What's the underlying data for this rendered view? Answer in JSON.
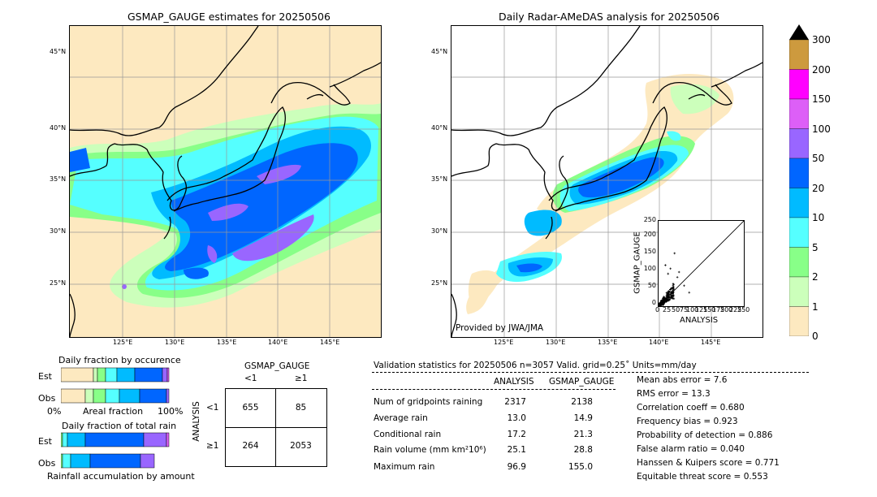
{
  "left_map": {
    "title": "GSMAP_GAUGE estimates for 20250506",
    "lat_labels": [
      "45°N",
      "40°N",
      "35°N",
      "30°N",
      "25°N"
    ],
    "lon_labels": [
      "125°E",
      "130°E",
      "135°E",
      "140°E",
      "145°E"
    ]
  },
  "right_map": {
    "title": "Daily Radar-AMeDAS analysis for 20250506",
    "lat_labels": [
      "45°N",
      "40°N",
      "35°N",
      "30°N",
      "25°N"
    ],
    "lon_labels": [
      "125°E",
      "130°E",
      "135°E",
      "140°E",
      "145°E"
    ],
    "credit": "Provided by JWA/JMA"
  },
  "colorbar": {
    "levels": [
      "300",
      "200",
      "150",
      "100",
      "50",
      "20",
      "10",
      "5",
      "2",
      "1",
      "0"
    ],
    "colors": [
      "#cd9a3e",
      "#ff00ff",
      "#dd5ff7",
      "#9966ff",
      "#0066ff",
      "#00bbff",
      "#55ffff",
      "#88ff88",
      "#ccffbb",
      "#fde9c0"
    ],
    "extend_color": "#000000"
  },
  "chart_data": [
    {
      "type": "scatter",
      "title": "",
      "xlabel": "ANALYSIS",
      "ylabel": "GSMAP_GAUGE",
      "xlim": [
        0,
        250
      ],
      "ylim": [
        0,
        250
      ],
      "xticks": [
        "0",
        "25",
        "50",
        "75",
        "100",
        "125",
        "150",
        "175",
        "200",
        "225",
        "250"
      ],
      "yticks": [
        "0",
        "25",
        "50",
        "75",
        "100",
        "125",
        "150",
        "175",
        "200",
        "225",
        "250"
      ]
    },
    {
      "type": "bar",
      "title": "Daily fraction by occurence",
      "categories": [
        "Est",
        "Obs"
      ],
      "xlabel": "Areal fraction",
      "xtick_left": "0%",
      "xtick_right": "100%"
    },
    {
      "type": "bar",
      "title": "Daily fraction of total rain",
      "categories": [
        "Est",
        "Obs"
      ],
      "xlabel": "Rainfall accumulation by amount"
    }
  ],
  "contingency": {
    "col_header": "GSMAP_GAUGE",
    "row_header": "ANALYSIS",
    "col_lt": "<1",
    "col_ge": "≥1",
    "row_lt": "<1",
    "row_ge": "≥1",
    "a": "655",
    "b": "85",
    "c": "264",
    "d": "2053"
  },
  "validation": {
    "header": "Validation statistics for 20250506  n=3057 Valid. grid=0.25˚ Units=mm/day",
    "col_analysis": "ANALYSIS",
    "col_gsmap": "GSMAP_GAUGE",
    "rows": [
      {
        "label": "Num of gridpoints raining",
        "analysis": "2317",
        "gsmap": "2138"
      },
      {
        "label": "Average rain",
        "analysis": "13.0",
        "gsmap": "14.9"
      },
      {
        "label": "Conditional rain",
        "analysis": "17.2",
        "gsmap": "21.3"
      },
      {
        "label": "Rain volume (mm km²10⁶)",
        "analysis": "25.1",
        "gsmap": "28.8"
      },
      {
        "label": "Maximum rain",
        "analysis": "96.9",
        "gsmap": "155.0"
      }
    ],
    "scores": [
      "Mean abs error =    7.6",
      "RMS error =   13.3",
      "Correlation coeff =  0.680",
      "Frequency bias =  0.923",
      "Probability of detection =  0.886",
      "False alarm ratio =  0.040",
      "Hanssen & Kuipers score =  0.771",
      "Equitable threat score =  0.553"
    ]
  }
}
